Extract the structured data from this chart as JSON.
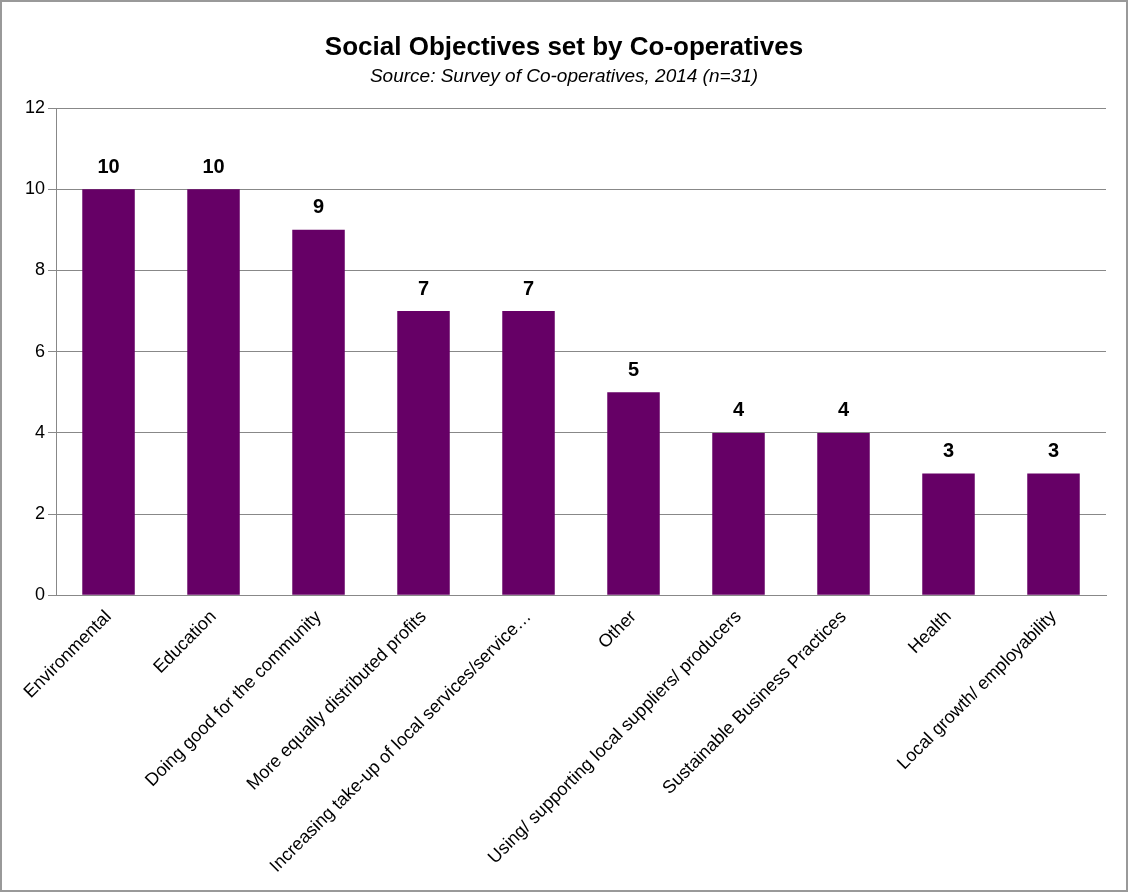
{
  "chart_data": {
    "type": "bar",
    "title": "Social Objectives set by Co-operatives",
    "subtitle": "Source: Survey of Co-operatives, 2014 (n=31)",
    "categories": [
      "Environmental",
      "Education",
      "Doing good for the community",
      "More equally distributed profits",
      "Increasing take-up of local services/service…",
      "Other",
      "Using/ supporting local suppliers/ producers",
      "Sustainable Business Practices",
      "Health",
      "Local growth/ employability"
    ],
    "values": [
      10,
      10,
      9,
      7,
      7,
      5,
      4,
      4,
      3,
      3
    ],
    "color": "#660066",
    "ylim": [
      0,
      12
    ],
    "yticks": [
      0,
      2,
      4,
      6,
      8,
      10,
      12
    ],
    "grid": "y",
    "legend": false,
    "data_labels": true
  }
}
